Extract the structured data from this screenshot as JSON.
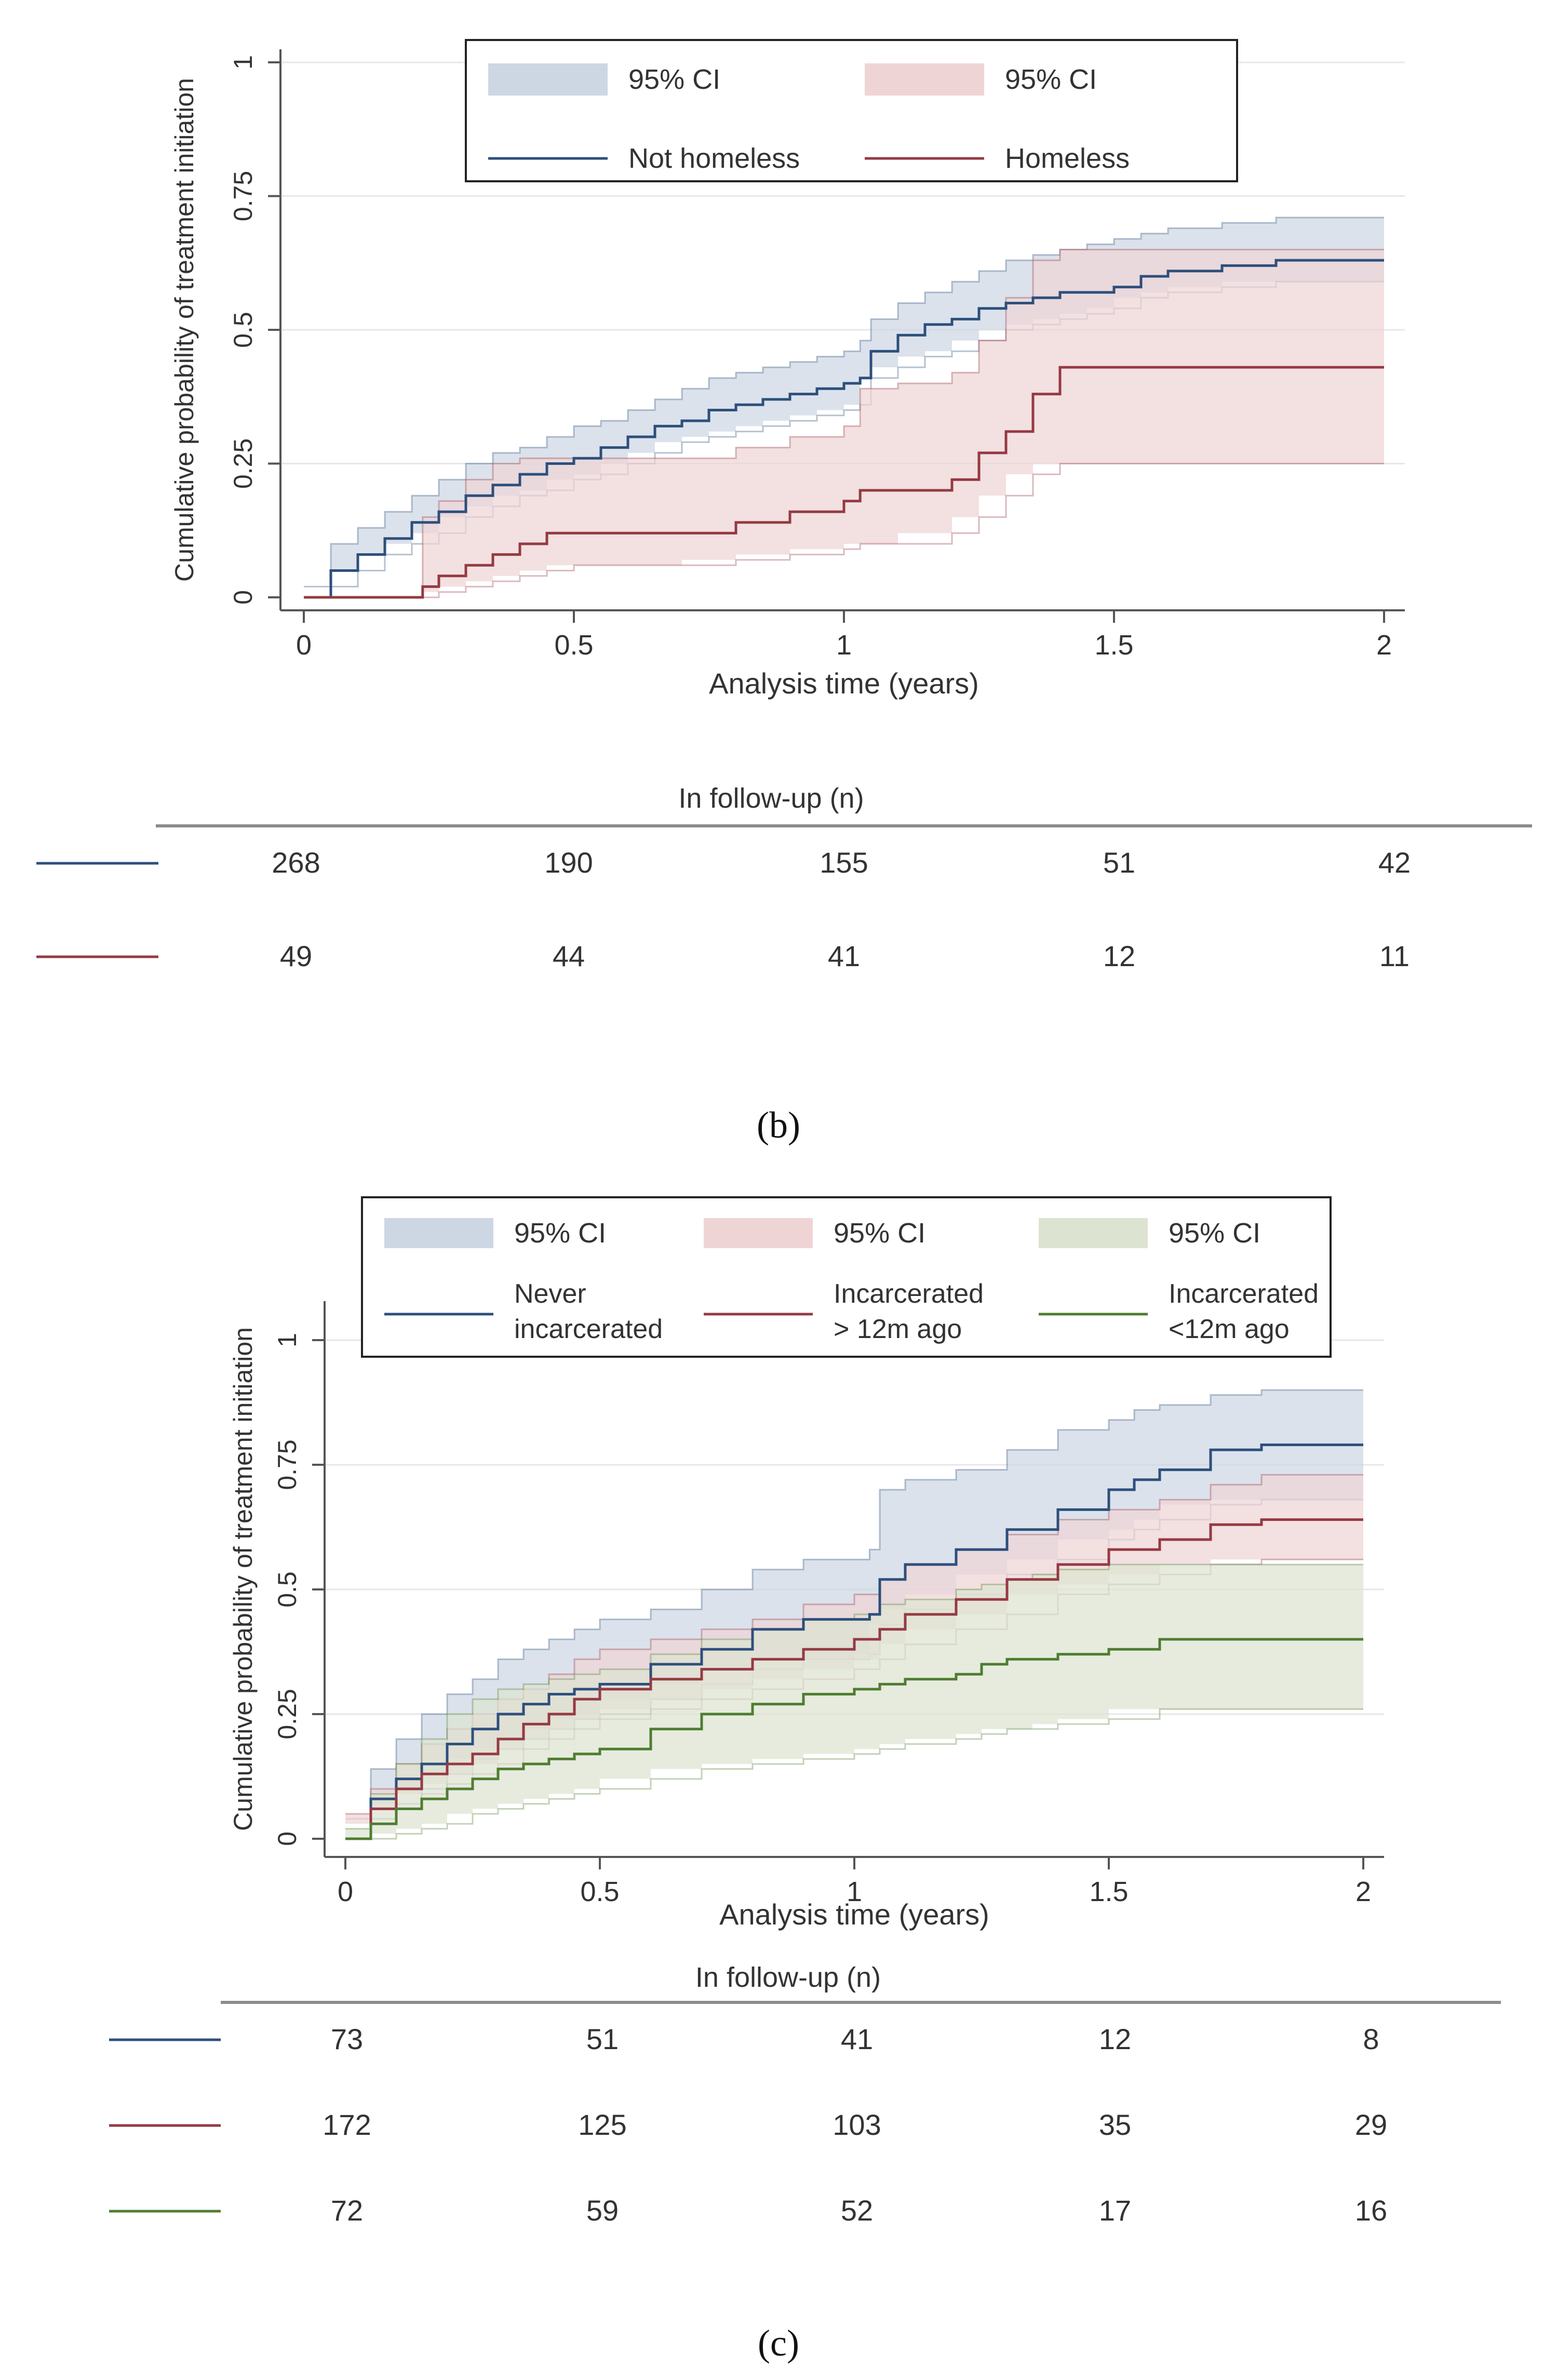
{
  "colors": {
    "blue": "#2d4f7c",
    "blue_fill": "#cdd7e3",
    "red": "#953a43",
    "red_fill": "#efd4d6",
    "green": "#4f7d30",
    "green_fill": "#dde3d1",
    "axis": "#555555",
    "grid": "#e7e7e7",
    "rule": "#8c8c8c"
  },
  "chart_data": [
    {
      "id": "b",
      "type": "line",
      "panel_label": "(b)",
      "xlabel": "Analysis time (years)",
      "ylabel": "Cumulative  probability  of treatment  initiation",
      "xlim": [
        0,
        2
      ],
      "ylim": [
        0,
        1
      ],
      "xticks": [
        "0",
        "0.5",
        "1",
        "1.5",
        "2"
      ],
      "yticks": [
        "0",
        "0.25",
        "0.5",
        "0.75",
        "1"
      ],
      "legend": {
        "ci_labels": [
          "95% CI",
          "95% CI"
        ],
        "line_labels": [
          "Not homeless",
          "Homeless"
        ]
      },
      "series": [
        {
          "name": "Not homeless",
          "color": "blue",
          "x": [
            0,
            0.05,
            0.1,
            0.15,
            0.2,
            0.25,
            0.3,
            0.35,
            0.4,
            0.45,
            0.5,
            0.55,
            0.6,
            0.65,
            0.7,
            0.75,
            0.8,
            0.85,
            0.9,
            0.95,
            1.0,
            1.03,
            1.05,
            1.1,
            1.15,
            1.2,
            1.25,
            1.3,
            1.35,
            1.4,
            1.45,
            1.5,
            1.55,
            1.6,
            1.7,
            1.8,
            2.0
          ],
          "y": [
            0,
            0.05,
            0.08,
            0.11,
            0.14,
            0.16,
            0.19,
            0.21,
            0.23,
            0.25,
            0.26,
            0.28,
            0.3,
            0.32,
            0.33,
            0.35,
            0.36,
            0.37,
            0.38,
            0.39,
            0.4,
            0.41,
            0.46,
            0.49,
            0.51,
            0.52,
            0.54,
            0.55,
            0.56,
            0.57,
            0.57,
            0.58,
            0.6,
            0.61,
            0.62,
            0.63,
            0.63
          ],
          "ci_low": [
            0,
            0.02,
            0.05,
            0.08,
            0.1,
            0.12,
            0.15,
            0.17,
            0.19,
            0.2,
            0.22,
            0.23,
            0.25,
            0.27,
            0.29,
            0.3,
            0.31,
            0.32,
            0.33,
            0.34,
            0.35,
            0.36,
            0.41,
            0.43,
            0.45,
            0.46,
            0.48,
            0.5,
            0.51,
            0.52,
            0.53,
            0.54,
            0.56,
            0.57,
            0.58,
            0.59,
            0.59
          ],
          "ci_high": [
            0.02,
            0.1,
            0.13,
            0.16,
            0.19,
            0.22,
            0.25,
            0.27,
            0.28,
            0.3,
            0.32,
            0.33,
            0.35,
            0.37,
            0.39,
            0.41,
            0.42,
            0.43,
            0.44,
            0.45,
            0.46,
            0.48,
            0.52,
            0.55,
            0.57,
            0.59,
            0.61,
            0.63,
            0.64,
            0.65,
            0.66,
            0.67,
            0.68,
            0.69,
            0.7,
            0.71,
            0.71
          ]
        },
        {
          "name": "Homeless",
          "color": "red",
          "x": [
            0,
            0.22,
            0.25,
            0.3,
            0.35,
            0.4,
            0.45,
            0.5,
            0.6,
            0.7,
            0.8,
            0.9,
            1.0,
            1.03,
            1.1,
            1.2,
            1.25,
            1.3,
            1.35,
            1.4,
            1.45,
            1.6,
            1.8,
            2.0
          ],
          "y": [
            0,
            0.02,
            0.04,
            0.06,
            0.08,
            0.1,
            0.12,
            0.12,
            0.12,
            0.12,
            0.14,
            0.16,
            0.18,
            0.2,
            0.2,
            0.22,
            0.27,
            0.31,
            0.38,
            0.43,
            0.43,
            0.43,
            0.43,
            0.43
          ],
          "ci_low": [
            0,
            0.0,
            0.01,
            0.02,
            0.03,
            0.04,
            0.05,
            0.06,
            0.06,
            0.06,
            0.07,
            0.08,
            0.09,
            0.1,
            0.1,
            0.12,
            0.15,
            0.19,
            0.23,
            0.25,
            0.25,
            0.25,
            0.25,
            0.25
          ],
          "ci_high": [
            0,
            0.15,
            0.18,
            0.22,
            0.25,
            0.26,
            0.26,
            0.26,
            0.26,
            0.26,
            0.28,
            0.3,
            0.32,
            0.39,
            0.4,
            0.42,
            0.48,
            0.56,
            0.63,
            0.65,
            0.65,
            0.65,
            0.65,
            0.65
          ]
        }
      ],
      "followup": {
        "title": "In follow-up  (n)",
        "rows": [
          {
            "color": "blue",
            "values": [
              "268",
              "190",
              "155",
              "51",
              "42"
            ]
          },
          {
            "color": "red",
            "values": [
              "49",
              "44",
              "41",
              "12",
              "11"
            ]
          }
        ]
      }
    },
    {
      "id": "c",
      "type": "line",
      "panel_label": "(c)",
      "xlabel": "Analysis time (years)",
      "ylabel": "Cumulative  probability  of treatment  initiation",
      "xlim": [
        0,
        2
      ],
      "ylim": [
        0,
        1
      ],
      "xticks": [
        "0",
        "0.5",
        "1",
        "1.5",
        "2"
      ],
      "yticks": [
        "0",
        "0.25",
        "0.5",
        "0.75",
        "1"
      ],
      "legend": {
        "ci_labels": [
          "95% CI",
          "95% CI",
          "95% CI"
        ],
        "line_labels": [
          [
            "Never",
            "incarcerated"
          ],
          [
            "Incarcerated",
            "> 12m ago"
          ],
          [
            "Incarcerated",
            "<12m ago"
          ]
        ]
      },
      "series": [
        {
          "name": "Never incarcerated",
          "color": "blue",
          "x": [
            0,
            0.05,
            0.1,
            0.15,
            0.2,
            0.25,
            0.3,
            0.35,
            0.4,
            0.45,
            0.5,
            0.6,
            0.7,
            0.8,
            0.9,
            1.0,
            1.03,
            1.05,
            1.1,
            1.2,
            1.3,
            1.4,
            1.5,
            1.55,
            1.6,
            1.7,
            1.8,
            2.0
          ],
          "y": [
            0,
            0.08,
            0.12,
            0.15,
            0.19,
            0.22,
            0.25,
            0.27,
            0.29,
            0.3,
            0.31,
            0.35,
            0.38,
            0.42,
            0.44,
            0.44,
            0.45,
            0.52,
            0.55,
            0.58,
            0.62,
            0.66,
            0.7,
            0.72,
            0.74,
            0.78,
            0.79,
            0.79
          ],
          "ci_low": [
            0,
            0.04,
            0.07,
            0.1,
            0.13,
            0.16,
            0.18,
            0.2,
            0.22,
            0.24,
            0.25,
            0.28,
            0.31,
            0.34,
            0.36,
            0.36,
            0.37,
            0.43,
            0.46,
            0.49,
            0.53,
            0.56,
            0.6,
            0.62,
            0.64,
            0.67,
            0.68,
            0.68
          ],
          "ci_high": [
            0.04,
            0.14,
            0.2,
            0.25,
            0.29,
            0.32,
            0.36,
            0.38,
            0.4,
            0.42,
            0.44,
            0.46,
            0.5,
            0.54,
            0.56,
            0.56,
            0.58,
            0.7,
            0.72,
            0.74,
            0.78,
            0.82,
            0.84,
            0.86,
            0.87,
            0.89,
            0.9,
            0.9
          ]
        },
        {
          "name": "Incarcerated > 12m ago",
          "color": "red",
          "x": [
            0,
            0.05,
            0.1,
            0.15,
            0.2,
            0.25,
            0.3,
            0.35,
            0.4,
            0.45,
            0.5,
            0.6,
            0.7,
            0.8,
            0.9,
            1.0,
            1.05,
            1.1,
            1.2,
            1.3,
            1.4,
            1.5,
            1.6,
            1.7,
            1.8,
            2.0
          ],
          "y": [
            0,
            0.06,
            0.1,
            0.13,
            0.15,
            0.17,
            0.2,
            0.23,
            0.25,
            0.28,
            0.3,
            0.32,
            0.34,
            0.36,
            0.38,
            0.4,
            0.42,
            0.45,
            0.48,
            0.52,
            0.55,
            0.58,
            0.6,
            0.63,
            0.64,
            0.64
          ],
          "ci_low": [
            0,
            0.03,
            0.06,
            0.09,
            0.11,
            0.13,
            0.15,
            0.18,
            0.2,
            0.22,
            0.24,
            0.26,
            0.28,
            0.3,
            0.32,
            0.34,
            0.36,
            0.39,
            0.42,
            0.45,
            0.49,
            0.51,
            0.53,
            0.55,
            0.56,
            0.56
          ],
          "ci_high": [
            0.05,
            0.1,
            0.15,
            0.19,
            0.22,
            0.25,
            0.28,
            0.3,
            0.33,
            0.36,
            0.38,
            0.4,
            0.42,
            0.44,
            0.47,
            0.49,
            0.52,
            0.55,
            0.58,
            0.61,
            0.64,
            0.66,
            0.68,
            0.71,
            0.73,
            0.73
          ]
        },
        {
          "name": "Incarcerated <12m ago",
          "color": "green",
          "x": [
            0,
            0.05,
            0.1,
            0.15,
            0.2,
            0.25,
            0.3,
            0.35,
            0.4,
            0.45,
            0.5,
            0.6,
            0.7,
            0.8,
            0.9,
            1.0,
            1.05,
            1.1,
            1.2,
            1.25,
            1.3,
            1.35,
            1.4,
            1.5,
            1.6,
            1.8,
            2.0
          ],
          "y": [
            0,
            0.03,
            0.06,
            0.08,
            0.1,
            0.12,
            0.14,
            0.15,
            0.16,
            0.17,
            0.18,
            0.22,
            0.25,
            0.27,
            0.29,
            0.3,
            0.31,
            0.32,
            0.33,
            0.35,
            0.36,
            0.36,
            0.37,
            0.38,
            0.4,
            0.4,
            0.4
          ],
          "ci_low": [
            0,
            0.0,
            0.01,
            0.02,
            0.03,
            0.05,
            0.06,
            0.07,
            0.08,
            0.09,
            0.1,
            0.12,
            0.14,
            0.15,
            0.16,
            0.17,
            0.18,
            0.19,
            0.2,
            0.21,
            0.22,
            0.22,
            0.23,
            0.24,
            0.26,
            0.26,
            0.26
          ],
          "ci_high": [
            0.02,
            0.09,
            0.15,
            0.2,
            0.25,
            0.28,
            0.3,
            0.31,
            0.32,
            0.33,
            0.34,
            0.37,
            0.4,
            0.42,
            0.44,
            0.45,
            0.47,
            0.48,
            0.5,
            0.51,
            0.52,
            0.53,
            0.54,
            0.55,
            0.55,
            0.55,
            0.55
          ]
        }
      ],
      "followup": {
        "title": "In follow-up  (n)",
        "rows": [
          {
            "color": "blue",
            "values": [
              "73",
              "51",
              "41",
              "12",
              "8"
            ]
          },
          {
            "color": "red",
            "values": [
              "172",
              "125",
              "103",
              "35",
              "29"
            ]
          },
          {
            "color": "green",
            "values": [
              "72",
              "59",
              "52",
              "17",
              "16"
            ]
          }
        ]
      }
    }
  ]
}
